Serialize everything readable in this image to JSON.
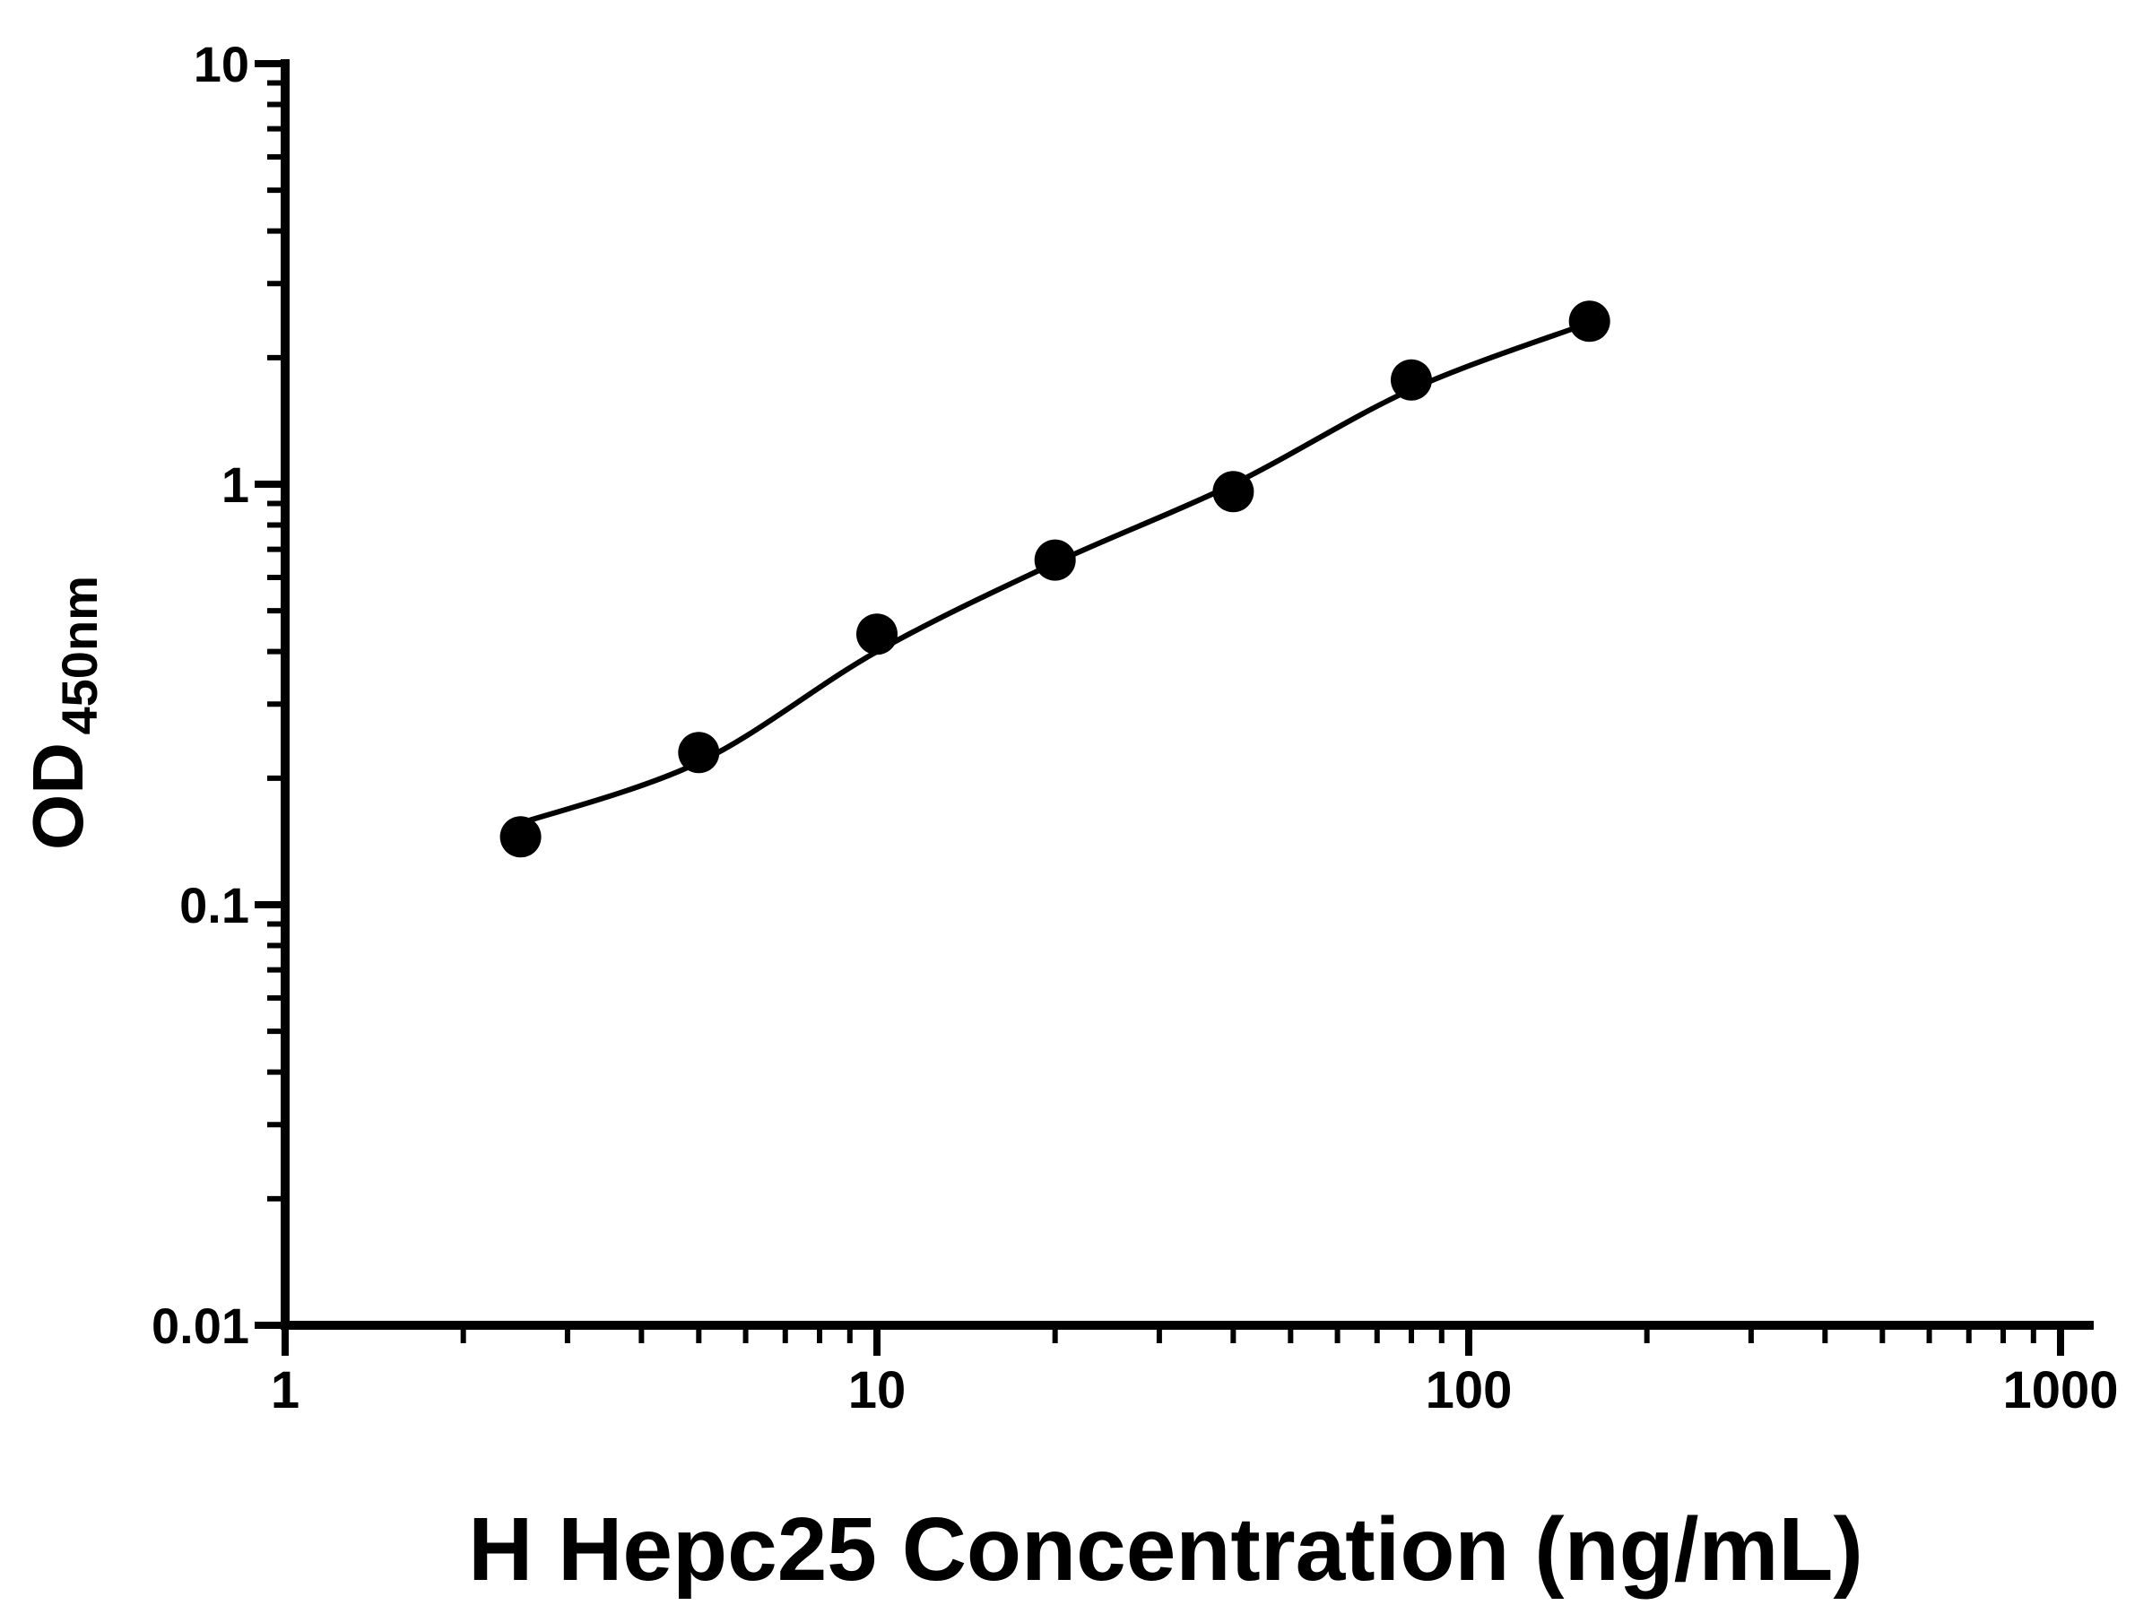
{
  "figure": {
    "background": "#ffffff",
    "accent_color": "#000000"
  },
  "chart_data": {
    "type": "scatter",
    "title": "",
    "xlabel": "H Hepc25 Concentration (ng/mL)",
    "ylabel_main": "OD",
    "ylabel_sub": "450nm",
    "x_scale": "log",
    "y_scale": "log",
    "xlim": [
      1,
      1000
    ],
    "ylim": [
      0.01,
      10
    ],
    "grid": false,
    "legend_position": "none",
    "x_major_ticks": [
      1,
      10,
      100,
      1000
    ],
    "x_tick_labels": [
      "1",
      "10",
      "100",
      "1000"
    ],
    "y_major_ticks": [
      0.01,
      0.1,
      1,
      10
    ],
    "y_tick_labels": [
      "0.01",
      "0.1",
      "1",
      "10"
    ],
    "points": {
      "x": [
        2.5,
        5,
        10,
        20,
        40,
        80,
        160
      ],
      "y": [
        0.145,
        0.23,
        0.44,
        0.66,
        0.96,
        1.77,
        2.44
      ]
    },
    "fit_curve": {
      "x": [
        2.45,
        5,
        10,
        20,
        40,
        80,
        160
      ],
      "y": [
        0.155,
        0.218,
        0.4,
        0.65,
        1.0,
        1.68,
        2.42
      ]
    },
    "marker": {
      "shape": "circle",
      "color": "#000000",
      "radius_px": 23
    },
    "line_color": "#000000",
    "axis_color": "#000000"
  }
}
